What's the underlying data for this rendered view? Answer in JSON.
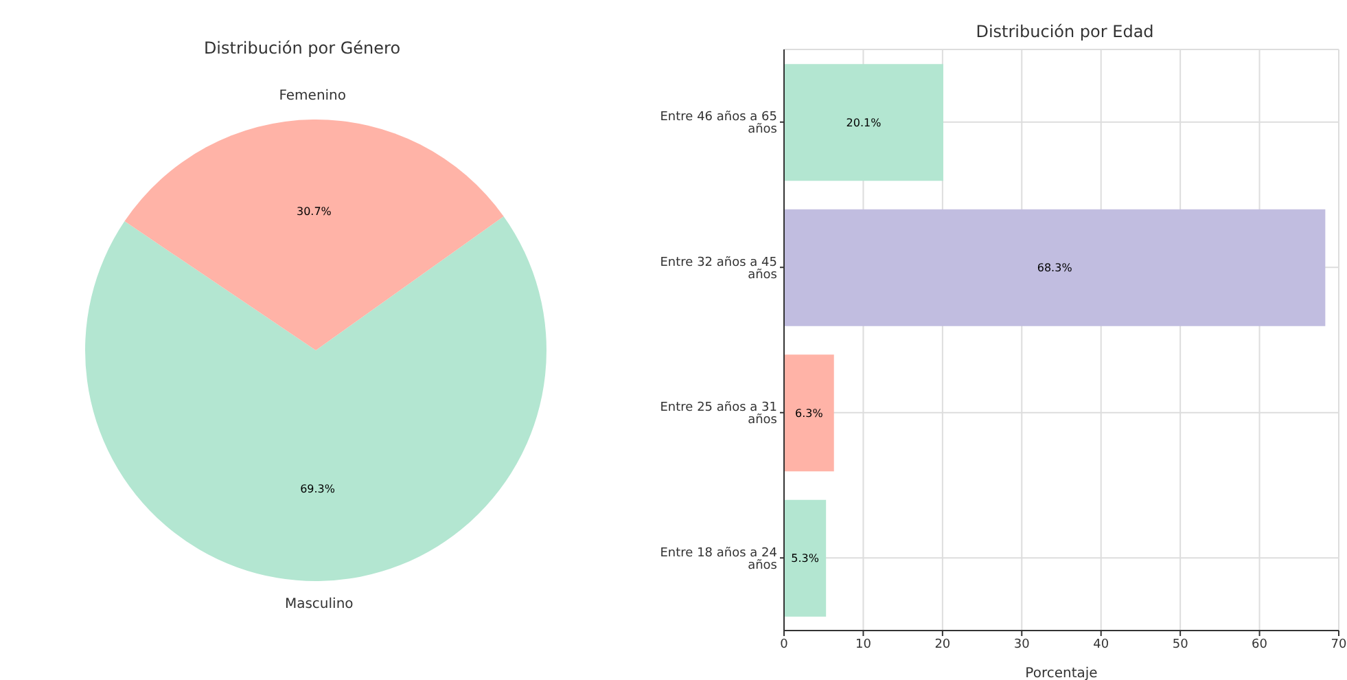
{
  "chart_data": [
    {
      "type": "pie",
      "title": "Distribución por Género",
      "categories": [
        "Masculino",
        "Femenino"
      ],
      "values": [
        69.3,
        30.7
      ],
      "colors": [
        "#b3e6d1",
        "#ffb3a7"
      ],
      "value_labels": [
        "69.3%",
        "30.7%"
      ]
    },
    {
      "type": "bar",
      "orientation": "horizontal",
      "title": "Distribución por Edad",
      "xlabel": "Porcentaje",
      "categories": [
        "Entre 46 años a 65 años",
        "Entre 32 años a 45 años",
        "Entre 25 años a 31 años",
        "Entre 18 años a 24 años"
      ],
      "values": [
        20.1,
        68.3,
        6.3,
        5.3
      ],
      "colors": [
        "#b3e6d1",
        "#c1bde0",
        "#ffb3a7",
        "#b3e6d1"
      ],
      "value_labels": [
        "20.1%",
        "68.3%",
        "6.3%",
        "5.3%"
      ],
      "xlim": [
        0,
        70
      ],
      "xticks": [
        0,
        10,
        20,
        30,
        40,
        50,
        60,
        70
      ],
      "grid": true
    }
  ]
}
